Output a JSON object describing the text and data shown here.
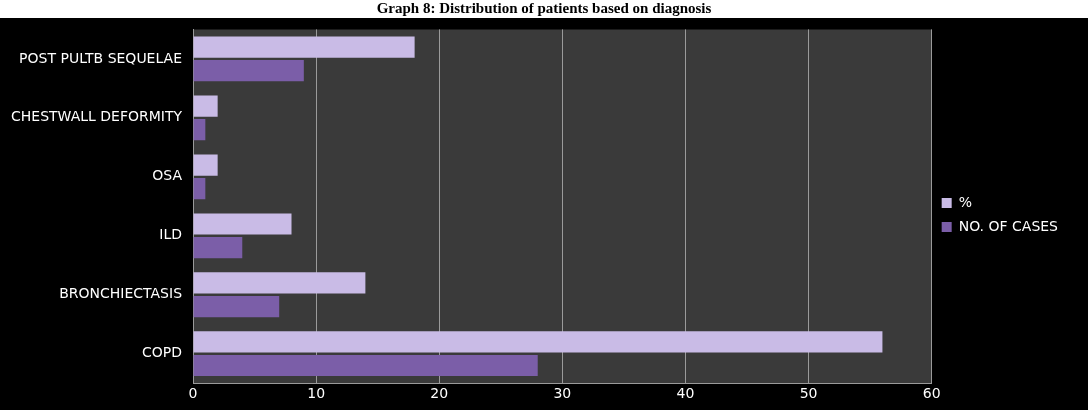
{
  "chart_data": {
    "type": "bar",
    "title": "Graph 8: Distribution of patients based on diagnosis",
    "orientation": "horizontal",
    "categories": [
      "POST PULTB SEQUELAE",
      "CHESTWALL DEFORMITY",
      "OSA",
      "ILD",
      "BRONCHIECTASIS",
      "COPD"
    ],
    "series": [
      {
        "name": "%",
        "color": "#c9bbe6",
        "values": [
          18,
          2,
          2,
          8,
          14,
          56
        ]
      },
      {
        "name": "NO. OF CASES",
        "color": "#7b5ea8",
        "values": [
          9,
          1,
          1,
          4,
          7,
          28
        ]
      }
    ],
    "xlim": [
      0,
      60
    ],
    "xticks": [
      0,
      10,
      20,
      30,
      40,
      50,
      60
    ],
    "grid": "x",
    "legend": "right"
  }
}
